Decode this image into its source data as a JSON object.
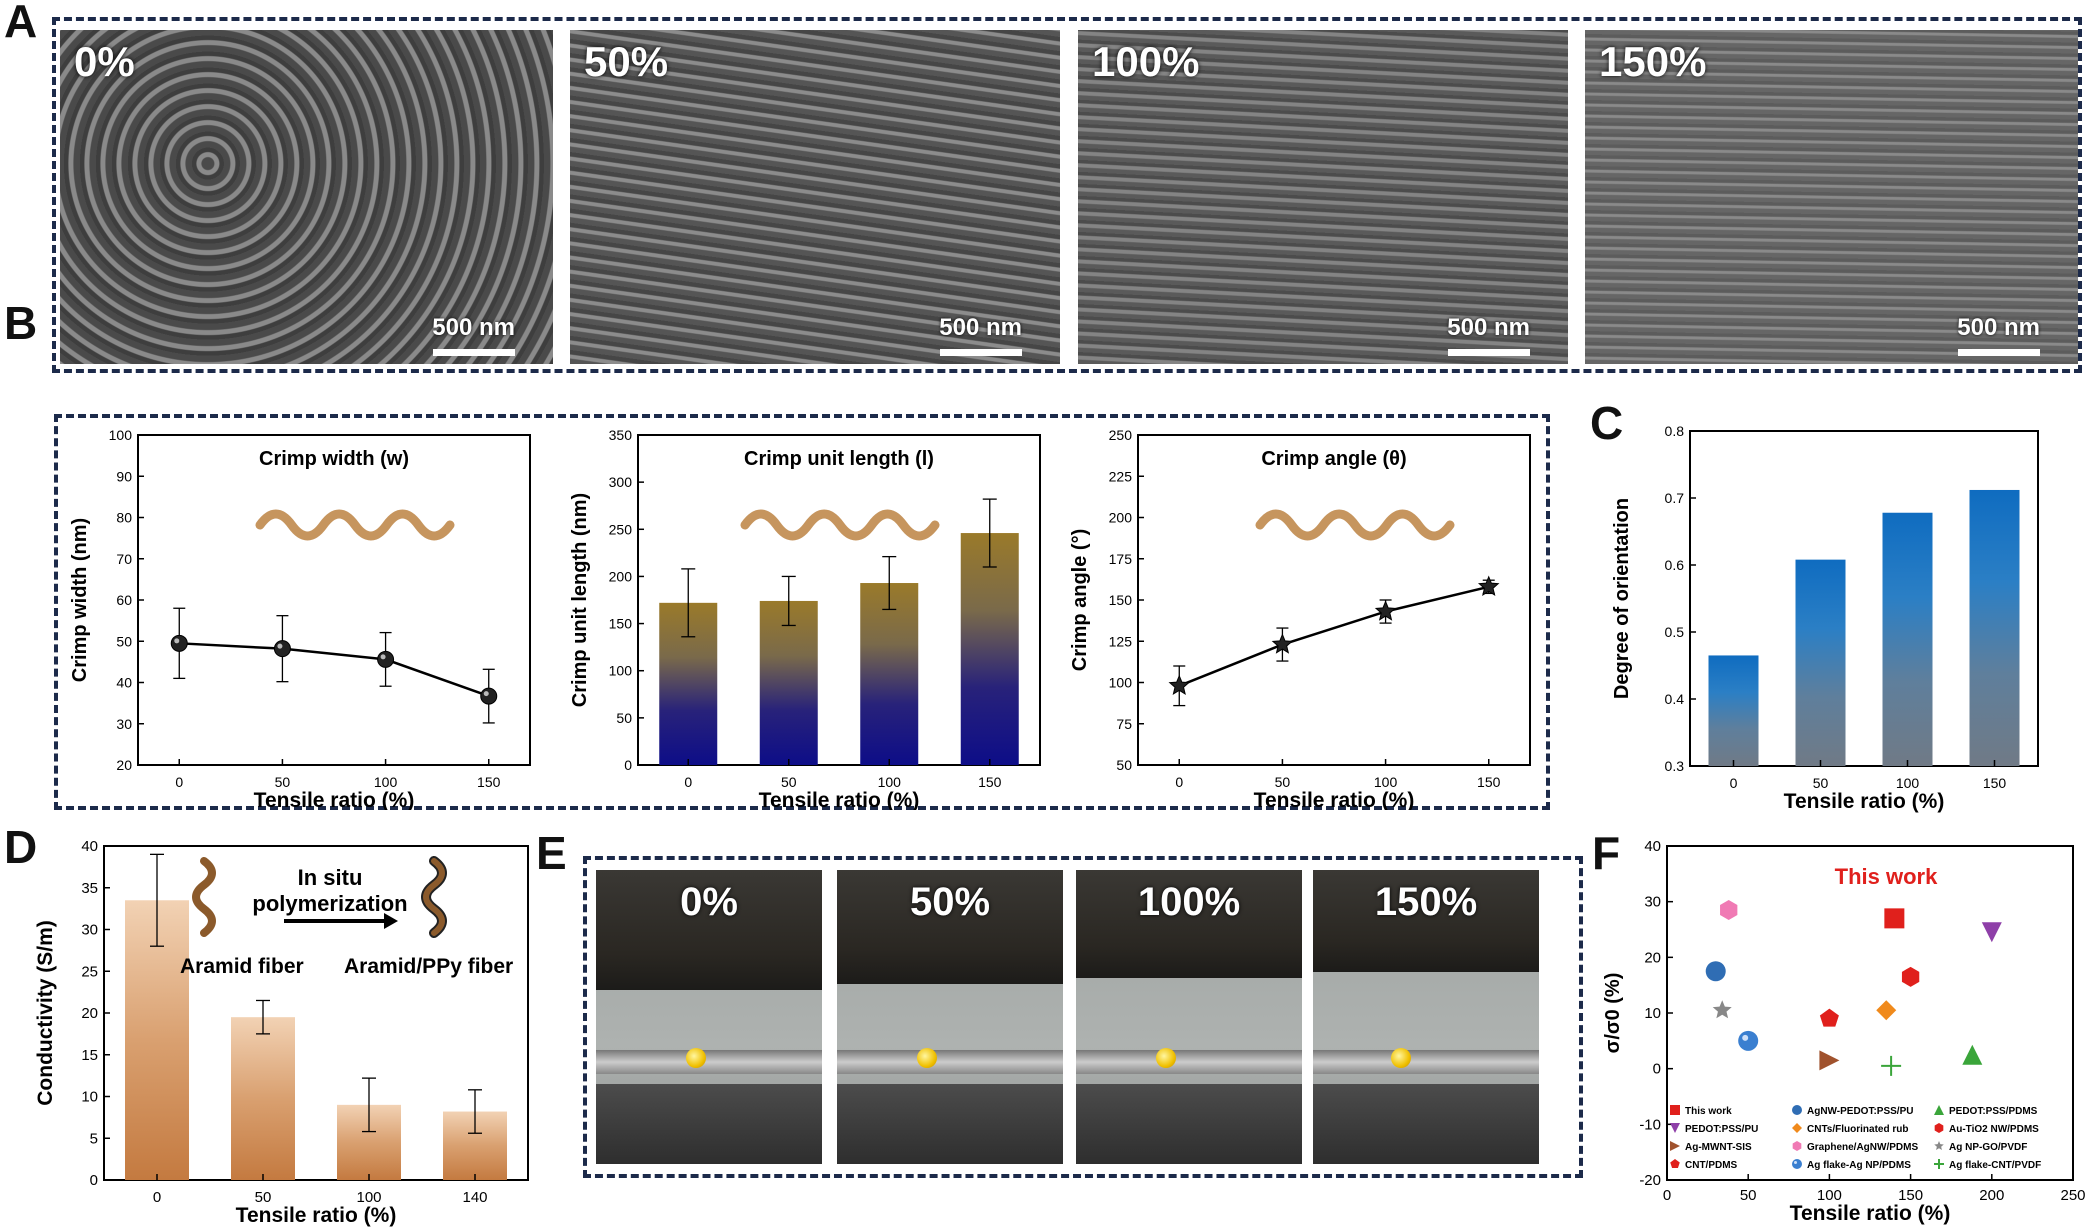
{
  "panels": {
    "a": {
      "letter": "A",
      "images": [
        {
          "label": "0%",
          "scale": "500 nm"
        },
        {
          "label": "50%",
          "scale": "500 nm"
        },
        {
          "label": "100%",
          "scale": "500 nm"
        },
        {
          "label": "150%",
          "scale": "500 nm"
        }
      ]
    },
    "b": {
      "letter": "B"
    },
    "c": {
      "letter": "C"
    },
    "d": {
      "letter": "D",
      "annotation": {
        "top": "In situ",
        "bottom": "polymerization",
        "left": "Aramid fiber",
        "right": "Aramid/PPy fiber"
      }
    },
    "e": {
      "letter": "E",
      "photos": [
        "0%",
        "50%",
        "100%",
        "150%"
      ]
    },
    "f": {
      "letter": "F",
      "highlight": "This work"
    }
  },
  "chart_data": [
    {
      "id": "B1",
      "type": "line",
      "title": "Crimp width (w)",
      "xlabel": "Tensile ratio (%)",
      "ylabel": "Crimp width (nm)",
      "x": [
        0,
        50,
        100,
        150
      ],
      "values": [
        49.5,
        48.2,
        45.6,
        36.7
      ],
      "errors": [
        8.5,
        8.0,
        6.5,
        6.5
      ],
      "xlim": [
        -20,
        170
      ],
      "ylim": [
        20,
        100
      ],
      "xticks": [
        "0",
        "50",
        "100",
        "150"
      ],
      "yticks": [
        "20",
        "30",
        "40",
        "50",
        "60",
        "70",
        "80",
        "90",
        "100"
      ]
    },
    {
      "id": "B2",
      "type": "bar",
      "title": "Crimp unit length (l)",
      "xlabel": "Tensile ratio (%)",
      "ylabel": "Crimp unit length (nm)",
      "categories": [
        "0",
        "50",
        "100",
        "150"
      ],
      "values": [
        172,
        174,
        193,
        246
      ],
      "errors": [
        36,
        26,
        28,
        36
      ],
      "ylim": [
        0,
        350
      ],
      "yticks": [
        "0",
        "50",
        "100",
        "150",
        "200",
        "250",
        "300",
        "350"
      ]
    },
    {
      "id": "B3",
      "type": "line",
      "title": "Crimp angle (θ)",
      "xlabel": "Tensile ratio (%)",
      "ylabel": "Crimp angle (°)",
      "x": [
        0,
        50,
        100,
        150
      ],
      "values": [
        98,
        123,
        143,
        158
      ],
      "errors": [
        12,
        10,
        7,
        4
      ],
      "xlim": [
        -20,
        170
      ],
      "ylim": [
        50,
        250
      ],
      "xticks": [
        "0",
        "50",
        "100",
        "150"
      ],
      "yticks": [
        "50",
        "75",
        "100",
        "125",
        "150",
        "175",
        "200",
        "225",
        "250"
      ]
    },
    {
      "id": "C",
      "type": "bar",
      "xlabel": "Tensile ratio (%)",
      "ylabel": "Degree of orientation",
      "categories": [
        "0",
        "50",
        "100",
        "150"
      ],
      "values": [
        0.465,
        0.608,
        0.678,
        0.712
      ],
      "ylim": [
        0.3,
        0.8
      ],
      "yticks": [
        "0.3",
        "0.4",
        "0.5",
        "0.6",
        "0.7",
        "0.8"
      ]
    },
    {
      "id": "D",
      "type": "bar",
      "xlabel": "Tensile ratio (%)",
      "ylabel": "Conductivity (S/m)",
      "categories": [
        "0",
        "50",
        "100",
        "140"
      ],
      "values": [
        33.5,
        19.5,
        9.0,
        8.2
      ],
      "errors": [
        5.5,
        2.0,
        3.2,
        2.6
      ],
      "ylim": [
        0,
        40
      ],
      "yticks": [
        "0",
        "5",
        "10",
        "15",
        "20",
        "25",
        "30",
        "35",
        "40"
      ]
    },
    {
      "id": "F",
      "type": "scatter",
      "xlabel": "Tensile ratio (%)",
      "ylabel": "σ/σ0 (%)",
      "xlim": [
        0,
        250
      ],
      "ylim": [
        -20,
        40
      ],
      "xticks": [
        "0",
        "50",
        "100",
        "150",
        "200",
        "250"
      ],
      "yticks": [
        "-20",
        "-10",
        "0",
        "10",
        "20",
        "30",
        "40"
      ],
      "series": [
        {
          "name": "This work",
          "x": 140,
          "y": 27,
          "marker": "square",
          "color": "#e0201c"
        },
        {
          "name": "PEDOT:PSS/PU",
          "x": 200,
          "y": 24.5,
          "marker": "triangle-down",
          "color": "#8e3fa8"
        },
        {
          "name": "Ag-MWNT-SIS",
          "x": 100,
          "y": 1.5,
          "marker": "triangle-right",
          "color": "#a0522d"
        },
        {
          "name": "CNT/PDMS",
          "x": 100,
          "y": 9,
          "marker": "pentagon",
          "color": "#e0201c"
        },
        {
          "name": "AgNW-PEDOT:PSS/PU",
          "x": 30,
          "y": 17.5,
          "marker": "circle",
          "color": "#2f6db4"
        },
        {
          "name": "CNTs/Fluorinated rub",
          "x": 135,
          "y": 10.5,
          "marker": "diamond",
          "color": "#f08a1c"
        },
        {
          "name": "Graphene/AgNW/PDMS",
          "x": 38,
          "y": 28.5,
          "marker": "hexagon",
          "color": "#f07ab4"
        },
        {
          "name": "Ag flake-Ag NP/PDMS",
          "x": 50,
          "y": 5,
          "marker": "sphere",
          "color": "#3a7fd0"
        },
        {
          "name": "PEDOT:PSS/PDMS",
          "x": 188,
          "y": 2.5,
          "marker": "triangle-up",
          "color": "#3aa53a"
        },
        {
          "name": "Au-TiO2 NW/PDMS",
          "x": 150,
          "y": 16.5,
          "marker": "hexagon",
          "color": "#e0201c"
        },
        {
          "name": "Ag NP-GO/PVDF",
          "x": 34,
          "y": 10.5,
          "marker": "star",
          "color": "#888888"
        },
        {
          "name": "Ag flake-CNT/PVDF",
          "x": 138,
          "y": 0.5,
          "marker": "plus",
          "color": "#3aa53a"
        }
      ]
    }
  ]
}
